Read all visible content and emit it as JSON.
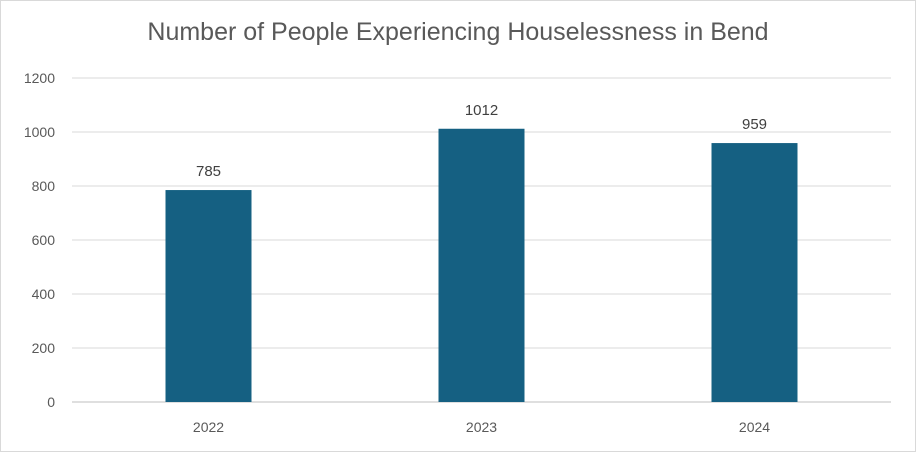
{
  "chart_data": {
    "type": "bar",
    "title": "Number of People Experiencing Houselessness in Bend",
    "categories": [
      "2022",
      "2023",
      "2024"
    ],
    "values": [
      785,
      1012,
      959
    ],
    "data_labels": [
      "785",
      "1012",
      "959"
    ],
    "xlabel": "",
    "ylabel": "",
    "ylim": [
      0,
      1200
    ],
    "yticks": [
      0,
      200,
      400,
      600,
      800,
      1000,
      1200
    ],
    "grid": true,
    "legend": "none",
    "bar_color": "#156082"
  }
}
